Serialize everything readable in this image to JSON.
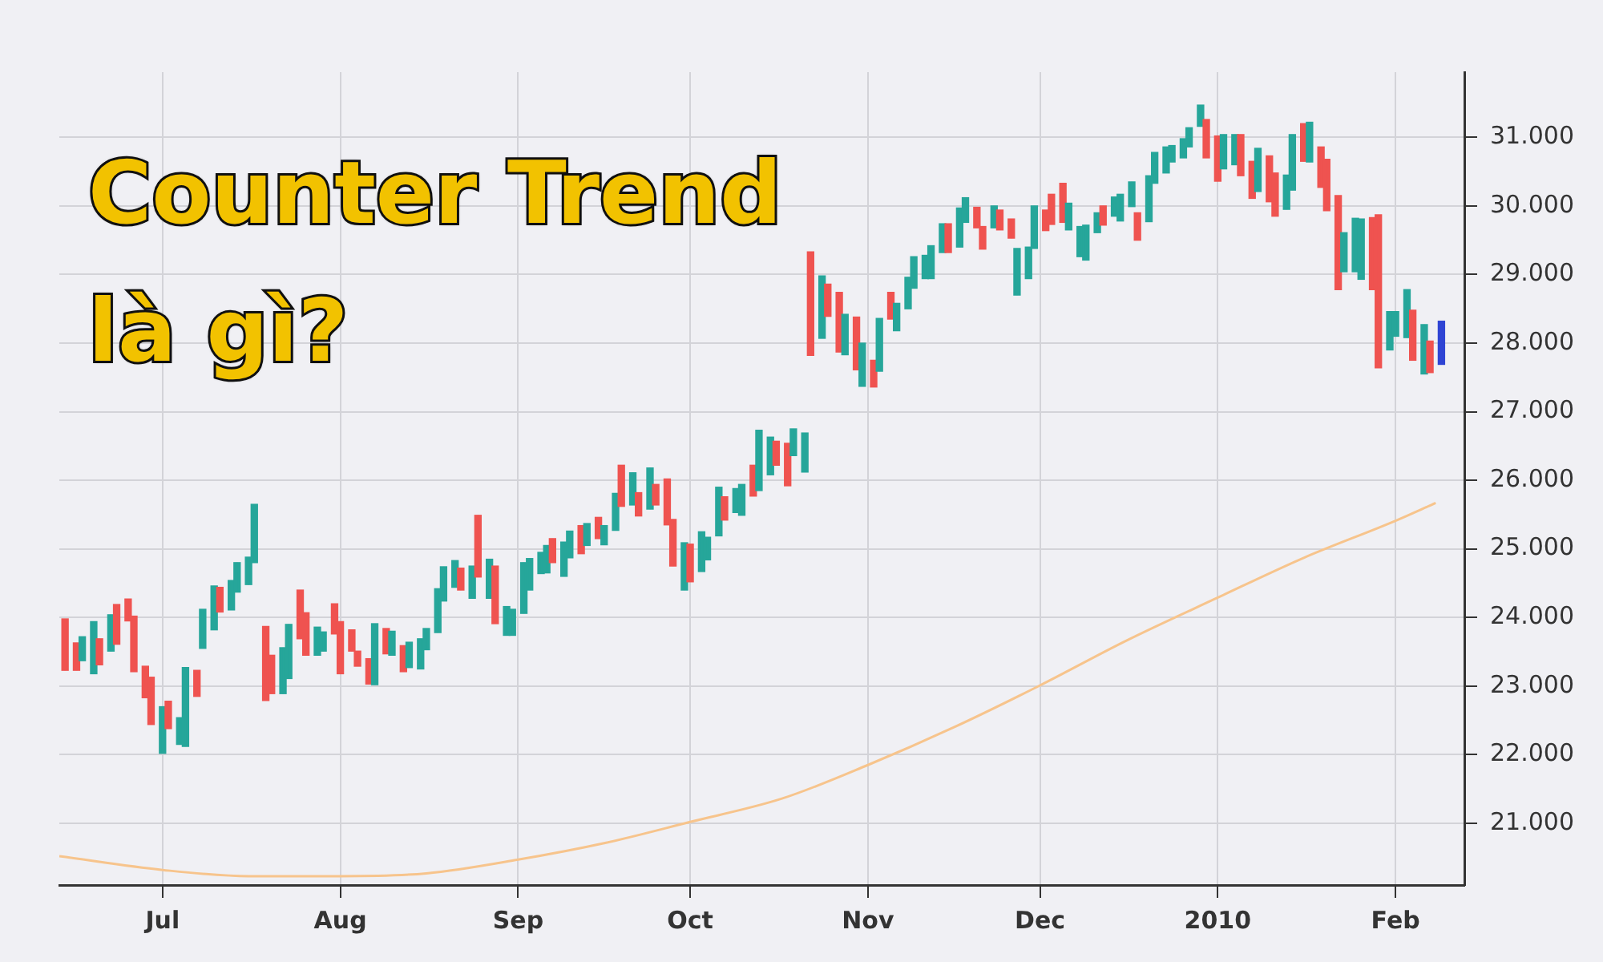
{
  "chart_data": {
    "type": "candlestick",
    "title": "Counter Trend là gì?",
    "x": [
      "2009-06-14",
      "2009-06-16",
      "2009-06-17",
      "2009-06-19",
      "2009-06-20",
      "2009-06-22",
      "2009-06-23",
      "2009-06-25",
      "2009-06-26",
      "2009-06-28",
      "2009-06-29",
      "2009-07-01",
      "2009-07-02",
      "2009-07-04",
      "2009-07-05",
      "2009-07-07",
      "2009-07-08",
      "2009-07-10",
      "2009-07-11",
      "2009-07-13",
      "2009-07-14",
      "2009-07-16",
      "2009-07-17",
      "2009-07-19",
      "2009-07-20",
      "2009-07-22",
      "2009-07-23",
      "2009-07-25",
      "2009-07-26",
      "2009-07-28",
      "2009-07-29",
      "2009-07-31",
      "2009-08-01",
      "2009-08-03",
      "2009-08-04",
      "2009-08-06",
      "2009-08-07",
      "2009-08-09",
      "2009-08-10",
      "2009-08-12",
      "2009-08-13",
      "2009-08-15",
      "2009-08-16",
      "2009-08-18",
      "2009-08-19",
      "2009-08-21",
      "2009-08-22",
      "2009-08-24",
      "2009-08-25",
      "2009-08-27",
      "2009-08-28",
      "2009-08-30",
      "2009-08-31",
      "2009-09-02",
      "2009-09-03",
      "2009-09-05",
      "2009-09-06",
      "2009-09-07",
      "2009-09-09",
      "2009-09-10",
      "2009-09-12",
      "2009-09-13",
      "2009-09-15",
      "2009-09-16",
      "2009-09-18",
      "2009-09-19",
      "2009-09-21",
      "2009-09-22",
      "2009-09-24",
      "2009-09-25",
      "2009-09-27",
      "2009-09-28",
      "2009-09-30",
      "2009-10-01",
      "2009-10-03",
      "2009-10-04",
      "2009-10-06",
      "2009-10-07",
      "2009-10-09",
      "2009-10-10",
      "2009-10-12",
      "2009-10-13",
      "2009-10-15",
      "2009-10-16",
      "2009-10-18",
      "2009-10-19",
      "2009-10-21",
      "2009-10-22",
      "2009-10-24",
      "2009-10-25",
      "2009-10-27",
      "2009-10-28",
      "2009-10-30",
      "2009-10-31",
      "2009-11-02",
      "2009-11-03",
      "2009-11-05",
      "2009-11-06",
      "2009-11-08",
      "2009-11-09",
      "2009-11-11",
      "2009-11-12",
      "2009-11-14",
      "2009-11-15",
      "2009-11-17",
      "2009-11-18",
      "2009-11-20",
      "2009-11-21",
      "2009-11-23",
      "2009-11-24",
      "2009-11-26",
      "2009-11-27",
      "2009-11-29",
      "2009-11-30",
      "2009-12-02",
      "2009-12-03",
      "2009-12-05",
      "2009-12-06",
      "2009-12-08",
      "2009-12-09",
      "2009-12-11",
      "2009-12-12",
      "2009-12-14",
      "2009-12-15",
      "2009-12-17",
      "2009-12-18",
      "2009-12-20",
      "2009-12-21",
      "2009-12-23",
      "2009-12-24",
      "2009-12-26",
      "2009-12-27",
      "2009-12-29",
      "2009-12-30",
      "2010-01-01",
      "2010-01-02",
      "2010-01-04",
      "2010-01-05",
      "2010-01-07",
      "2010-01-08",
      "2010-01-10",
      "2010-01-11",
      "2010-01-13",
      "2010-01-14",
      "2010-01-16",
      "2010-01-17",
      "2010-01-19",
      "2010-01-20",
      "2010-01-22",
      "2010-01-23",
      "2010-01-25",
      "2010-01-26",
      "2010-01-28",
      "2010-01-29",
      "2010-01-31",
      "2010-02-01",
      "2010-02-03",
      "2010-02-04",
      "2010-02-06",
      "2010-02-07",
      "2010-02-09"
    ],
    "ohlc": [
      [
        23980,
        23980,
        23230,
        23230
      ],
      [
        23630,
        23630,
        23230,
        23230
      ],
      [
        23370,
        23720,
        23370,
        23720
      ],
      [
        23180,
        23940,
        23180,
        23940
      ],
      [
        23690,
        23690,
        23310,
        23310
      ],
      [
        23510,
        24040,
        23510,
        24040
      ],
      [
        24190,
        24190,
        23610,
        23610
      ],
      [
        24270,
        24270,
        23950,
        23950
      ],
      [
        24020,
        24020,
        23210,
        23210
      ],
      [
        23290,
        23290,
        22830,
        22830
      ],
      [
        23130,
        23130,
        22440,
        22440
      ],
      [
        22020,
        22700,
        22020,
        22700
      ],
      [
        22780,
        22780,
        22380,
        22380
      ],
      [
        22150,
        22540,
        22150,
        22540
      ],
      [
        22120,
        23270,
        22120,
        23270
      ],
      [
        23230,
        23230,
        22850,
        22850
      ],
      [
        23550,
        24120,
        23550,
        24120
      ],
      [
        23820,
        24460,
        23820,
        24460
      ],
      [
        24440,
        24440,
        24080,
        24080
      ],
      [
        24110,
        24540,
        24110,
        24540
      ],
      [
        24370,
        24800,
        24370,
        24800
      ],
      [
        24480,
        24880,
        24480,
        24880
      ],
      [
        24800,
        25650,
        24800,
        25650
      ],
      [
        23870,
        23870,
        22790,
        22790
      ],
      [
        23450,
        23450,
        22890,
        22890
      ],
      [
        22890,
        23560,
        22890,
        23560
      ],
      [
        23110,
        23900,
        23110,
        23900
      ],
      [
        24400,
        24400,
        23690,
        23690
      ],
      [
        24070,
        24070,
        23450,
        23450
      ],
      [
        23450,
        23860,
        23450,
        23860
      ],
      [
        23510,
        23790,
        23510,
        23790
      ],
      [
        24200,
        24200,
        23760,
        23760
      ],
      [
        23940,
        23940,
        23180,
        23180
      ],
      [
        23820,
        23820,
        23510,
        23510
      ],
      [
        23510,
        23510,
        23290,
        23290
      ],
      [
        23400,
        23400,
        23030,
        23030
      ],
      [
        23020,
        23910,
        23020,
        23910
      ],
      [
        23840,
        23840,
        23470,
        23470
      ],
      [
        23450,
        23800,
        23450,
        23800
      ],
      [
        23590,
        23590,
        23210,
        23210
      ],
      [
        23270,
        23640,
        23270,
        23640
      ],
      [
        23250,
        23690,
        23250,
        23690
      ],
      [
        23530,
        23840,
        23530,
        23840
      ],
      [
        23780,
        24420,
        23780,
        24420
      ],
      [
        24240,
        24740,
        24240,
        24740
      ],
      [
        24440,
        24830,
        24440,
        24830
      ],
      [
        24720,
        24720,
        24400,
        24400
      ],
      [
        24280,
        24750,
        24280,
        24750
      ],
      [
        25490,
        25490,
        24590,
        24590
      ],
      [
        24280,
        24850,
        24280,
        24850
      ],
      [
        24750,
        24750,
        23910,
        23910
      ],
      [
        23740,
        24160,
        23740,
        24160
      ],
      [
        23740,
        24120,
        23740,
        24120
      ],
      [
        24060,
        24800,
        24060,
        24800
      ],
      [
        24400,
        24860,
        24400,
        24860
      ],
      [
        24640,
        24950,
        24640,
        24950
      ],
      [
        24650,
        25050,
        24650,
        25050
      ],
      [
        25150,
        25150,
        24800,
        24800
      ],
      [
        24600,
        25100,
        24600,
        25100
      ],
      [
        24870,
        25260,
        24870,
        25260
      ],
      [
        25340,
        25340,
        24930,
        24930
      ],
      [
        25050,
        25370,
        25050,
        25370
      ],
      [
        25460,
        25460,
        25150,
        25150
      ],
      [
        25060,
        25340,
        25060,
        25340
      ],
      [
        25270,
        25810,
        25270,
        25810
      ],
      [
        26220,
        26220,
        25620,
        25620
      ],
      [
        25640,
        26110,
        25640,
        26110
      ],
      [
        25820,
        25820,
        25480,
        25480
      ],
      [
        25580,
        26180,
        25580,
        26180
      ],
      [
        25940,
        25940,
        25640,
        25640
      ],
      [
        26020,
        26020,
        25350,
        25350
      ],
      [
        25430,
        25430,
        24750,
        24750
      ],
      [
        24400,
        25090,
        24400,
        25090
      ],
      [
        25070,
        25070,
        24520,
        24520
      ],
      [
        24670,
        25250,
        24670,
        25250
      ],
      [
        24840,
        25170,
        24840,
        25170
      ],
      [
        25190,
        25900,
        25190,
        25900
      ],
      [
        25760,
        25760,
        25420,
        25420
      ],
      [
        25530,
        25880,
        25530,
        25880
      ],
      [
        25490,
        25940,
        25490,
        25940
      ],
      [
        26220,
        26220,
        25770,
        25770
      ],
      [
        25850,
        26730,
        25850,
        26730
      ],
      [
        26080,
        26630,
        26080,
        26630
      ],
      [
        26570,
        26570,
        26220,
        26220
      ],
      [
        26540,
        26540,
        25920,
        25920
      ],
      [
        26360,
        26750,
        26360,
        26750
      ],
      [
        26120,
        26690,
        26120,
        26690
      ],
      [
        29330,
        29330,
        27820,
        27820
      ],
      [
        28070,
        28980,
        28070,
        28980
      ],
      [
        28860,
        28860,
        28390,
        28390
      ],
      [
        28740,
        28740,
        27870,
        27870
      ],
      [
        27830,
        28420,
        27830,
        28420
      ],
      [
        28380,
        28380,
        27610,
        27610
      ],
      [
        27370,
        28000,
        27370,
        28000
      ],
      [
        27750,
        27750,
        27360,
        27360
      ],
      [
        27590,
        28360,
        27590,
        28360
      ],
      [
        28740,
        28740,
        28350,
        28350
      ],
      [
        28180,
        28580,
        28180,
        28580
      ],
      [
        28500,
        28960,
        28500,
        28960
      ],
      [
        28800,
        29260,
        28800,
        29260
      ],
      [
        28940,
        29280,
        28940,
        29280
      ],
      [
        28940,
        29420,
        28940,
        29420
      ],
      [
        29320,
        29740,
        29320,
        29740
      ],
      [
        29740,
        29740,
        29320,
        29320
      ],
      [
        29400,
        29970,
        29400,
        29970
      ],
      [
        29760,
        30120,
        29760,
        30120
      ],
      [
        29980,
        29980,
        29680,
        29680
      ],
      [
        29700,
        29700,
        29370,
        29370
      ],
      [
        29680,
        30000,
        29680,
        30000
      ],
      [
        29940,
        29940,
        29650,
        29650
      ],
      [
        29810,
        29810,
        29530,
        29530
      ],
      [
        28700,
        29380,
        28700,
        29380
      ],
      [
        28940,
        29400,
        28940,
        29400
      ],
      [
        29380,
        30000,
        29380,
        30000
      ],
      [
        29940,
        29940,
        29640,
        29640
      ],
      [
        30170,
        30170,
        29730,
        29730
      ],
      [
        30330,
        30330,
        29760,
        29760
      ],
      [
        29650,
        30040,
        29650,
        30040
      ],
      [
        29260,
        29700,
        29260,
        29700
      ],
      [
        29210,
        29720,
        29210,
        29720
      ],
      [
        29610,
        29900,
        29610,
        29900
      ],
      [
        30000,
        30000,
        29720,
        29720
      ],
      [
        29850,
        30130,
        29850,
        30130
      ],
      [
        29780,
        30170,
        29780,
        30170
      ],
      [
        29990,
        30350,
        29990,
        30350
      ],
      [
        29900,
        29900,
        29500,
        29500
      ],
      [
        29770,
        30440,
        29770,
        30440
      ],
      [
        30330,
        30780,
        30330,
        30780
      ],
      [
        30480,
        30860,
        30480,
        30860
      ],
      [
        30640,
        30880,
        30640,
        30880
      ],
      [
        30700,
        30980,
        30700,
        30980
      ],
      [
        30860,
        31140,
        30860,
        31140
      ],
      [
        31160,
        31470,
        31160,
        31470
      ],
      [
        31260,
        31260,
        30700,
        30700
      ],
      [
        31020,
        31020,
        30360,
        30360
      ],
      [
        30540,
        31040,
        30540,
        31040
      ],
      [
        30600,
        31040,
        30600,
        31040
      ],
      [
        31040,
        31040,
        30440,
        30440
      ],
      [
        30650,
        30650,
        30110,
        30110
      ],
      [
        30210,
        30840,
        30210,
        30840
      ],
      [
        30730,
        30730,
        30060,
        30060
      ],
      [
        30480,
        30480,
        29850,
        29850
      ],
      [
        29950,
        30450,
        29950,
        30450
      ],
      [
        30230,
        31040,
        30230,
        31040
      ],
      [
        31200,
        31200,
        30650,
        30650
      ],
      [
        30640,
        31220,
        30640,
        31220
      ],
      [
        30860,
        30860,
        30270,
        30270
      ],
      [
        30680,
        30680,
        29930,
        29930
      ],
      [
        30150,
        30150,
        28780,
        28780
      ],
      [
        29040,
        29610,
        29040,
        29610
      ],
      [
        29040,
        29820,
        29040,
        29820
      ],
      [
        28930,
        29810,
        28930,
        29810
      ],
      [
        29830,
        29830,
        28780,
        28780
      ],
      [
        29870,
        29870,
        27640,
        27640
      ],
      [
        27900,
        28460,
        27900,
        28460
      ],
      [
        28100,
        28460,
        28100,
        28460
      ],
      [
        28080,
        28780,
        28080,
        28780
      ],
      [
        28480,
        28480,
        27750,
        27750
      ],
      [
        27550,
        28270,
        27550,
        28270
      ],
      [
        28030,
        28030,
        27570,
        27570
      ],
      [
        27690,
        28320,
        27690,
        28320
      ]
    ],
    "colors": [
      "#ef5350",
      "#ef5350",
      "#26a69a",
      "#26a69a",
      "#ef5350",
      "#26a69a",
      "#ef5350",
      "#ef5350",
      "#ef5350",
      "#ef5350",
      "#ef5350",
      "#26a69a",
      "#ef5350",
      "#26a69a",
      "#26a69a",
      "#ef5350",
      "#26a69a",
      "#26a69a",
      "#ef5350",
      "#26a69a",
      "#26a69a",
      "#26a69a",
      "#26a69a",
      "#ef5350",
      "#ef5350",
      "#26a69a",
      "#26a69a",
      "#ef5350",
      "#ef5350",
      "#26a69a",
      "#26a69a",
      "#ef5350",
      "#ef5350",
      "#ef5350",
      "#ef5350",
      "#ef5350",
      "#26a69a",
      "#ef5350",
      "#26a69a",
      "#ef5350",
      "#26a69a",
      "#26a69a",
      "#26a69a",
      "#26a69a",
      "#26a69a",
      "#26a69a",
      "#ef5350",
      "#26a69a",
      "#ef5350",
      "#26a69a",
      "#ef5350",
      "#26a69a",
      "#26a69a",
      "#26a69a",
      "#26a69a",
      "#26a69a",
      "#26a69a",
      "#ef5350",
      "#26a69a",
      "#26a69a",
      "#ef5350",
      "#26a69a",
      "#ef5350",
      "#26a69a",
      "#26a69a",
      "#ef5350",
      "#26a69a",
      "#ef5350",
      "#26a69a",
      "#ef5350",
      "#ef5350",
      "#ef5350",
      "#26a69a",
      "#ef5350",
      "#26a69a",
      "#26a69a",
      "#26a69a",
      "#ef5350",
      "#26a69a",
      "#26a69a",
      "#ef5350",
      "#26a69a",
      "#26a69a",
      "#ef5350",
      "#ef5350",
      "#26a69a",
      "#26a69a",
      "#ef5350",
      "#26a69a",
      "#ef5350",
      "#ef5350",
      "#26a69a",
      "#ef5350",
      "#26a69a",
      "#ef5350",
      "#26a69a",
      "#ef5350",
      "#26a69a",
      "#26a69a",
      "#26a69a",
      "#26a69a",
      "#26a69a",
      "#26a69a",
      "#ef5350",
      "#26a69a",
      "#26a69a",
      "#ef5350",
      "#ef5350",
      "#26a69a",
      "#ef5350",
      "#ef5350",
      "#26a69a",
      "#26a69a",
      "#26a69a",
      "#ef5350",
      "#ef5350",
      "#ef5350",
      "#26a69a",
      "#26a69a",
      "#26a69a",
      "#26a69a",
      "#ef5350",
      "#26a69a",
      "#26a69a",
      "#26a69a",
      "#ef5350",
      "#26a69a",
      "#26a69a",
      "#26a69a",
      "#26a69a",
      "#26a69a",
      "#26a69a",
      "#26a69a",
      "#ef5350",
      "#ef5350",
      "#26a69a",
      "#26a69a",
      "#ef5350",
      "#ef5350",
      "#26a69a",
      "#ef5350",
      "#ef5350",
      "#26a69a",
      "#26a69a",
      "#ef5350",
      "#26a69a",
      "#ef5350",
      "#ef5350",
      "#ef5350",
      "#26a69a",
      "#26a69a",
      "#26a69a",
      "#ef5350",
      "#ef5350",
      "#26a69a",
      "#26a69a",
      "#26a69a",
      "#ef5350",
      "#26a69a",
      "#ef5350",
      "#2f44d4"
    ],
    "series": [
      {
        "type": "line",
        "color": "#f7c48c",
        "x": [
          "2009-06-13",
          "2009-07-01",
          "2009-07-16",
          "2009-08-01",
          "2009-08-16",
          "2009-09-01",
          "2009-09-16",
          "2009-10-01",
          "2009-10-17",
          "2009-11-01",
          "2009-11-16",
          "2009-12-01",
          "2009-12-16",
          "2010-01-01",
          "2010-01-16",
          "2010-02-01",
          "2010-02-08"
        ],
        "values": [
          20520,
          20320,
          20230,
          20230,
          20270,
          20470,
          20710,
          21020,
          21360,
          21850,
          22400,
          23010,
          23660,
          24290,
          24870,
          25410,
          25670
        ]
      }
    ],
    "xlim": [
      "2009-06-13",
      "2010-02-13"
    ],
    "xticks": [
      {
        "value": "2009-07-01",
        "label": "Jul"
      },
      {
        "value": "2009-08-01",
        "label": "Aug"
      },
      {
        "value": "2009-09-01",
        "label": "Sep"
      },
      {
        "value": "2009-10-01",
        "label": "Oct"
      },
      {
        "value": "2009-11-01",
        "label": "Nov"
      },
      {
        "value": "2009-12-01",
        "label": "Dec"
      },
      {
        "value": "2010-01-01",
        "label": "2010"
      },
      {
        "value": "2010-02-01",
        "label": "Feb"
      }
    ],
    "ylim": [
      20100,
      31950
    ],
    "yticks": [
      {
        "value": 21000,
        "label": "21.000"
      },
      {
        "value": 22000,
        "label": "22.000"
      },
      {
        "value": 23000,
        "label": "23.000"
      },
      {
        "value": 24000,
        "label": "24.000"
      },
      {
        "value": 25000,
        "label": "25.000"
      },
      {
        "value": 26000,
        "label": "26.000"
      },
      {
        "value": 27000,
        "label": "27.000"
      },
      {
        "value": 28000,
        "label": "28.000"
      },
      {
        "value": 29000,
        "label": "29.000"
      },
      {
        "value": 30000,
        "label": "30.000"
      },
      {
        "value": 31000,
        "label": "31.000"
      }
    ],
    "grid": true
  }
}
